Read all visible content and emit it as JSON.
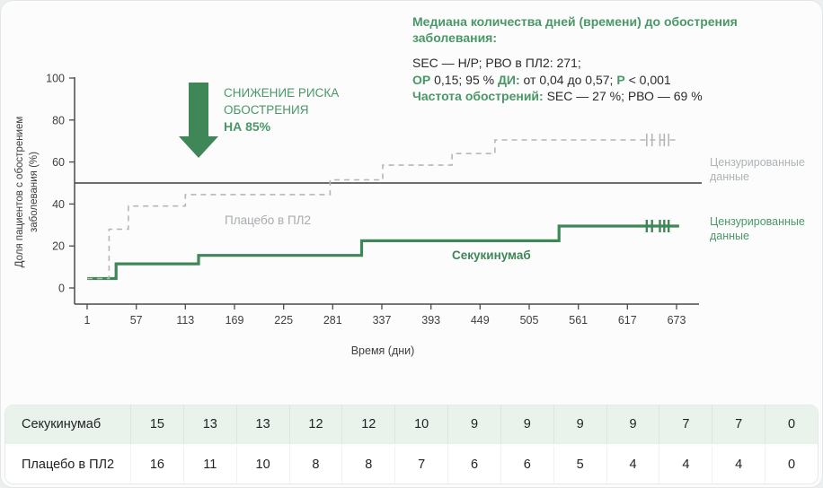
{
  "colors": {
    "green_line": "#3F8757",
    "green_text": "#4A9767",
    "gray_line": "#B6B6B6",
    "gray_text": "#A7ABAE",
    "table_green_bg": "#E9F3EC",
    "ref_line": "#1A1A1A"
  },
  "annotation": {
    "title": "Медиана количества дней (времени) до обострения заболевания:",
    "lines": [
      [
        {
          "t": "SEC — Н/Р; РВО в ПЛ2: 271;",
          "g": false
        }
      ],
      [
        {
          "t": "ОР",
          "g": true
        },
        {
          "t": " 0,15; 95 % ",
          "g": false
        },
        {
          "t": "ДИ:",
          "g": true
        },
        {
          "t": " от 0,04 до 0,57; ",
          "g": false
        },
        {
          "t": "Р",
          "g": true
        },
        {
          "t": " < 0,001",
          "g": false
        }
      ],
      [
        {
          "t": "Частота обострений:",
          "g": true
        },
        {
          "t": " SEC — 27 %; РВО — 69 %",
          "g": false
        }
      ]
    ]
  },
  "arrow": {
    "line1": "СНИЖЕНИЕ РИСКА",
    "line2": "ОБОСТРЕНИЯ",
    "line3": "НА 85%"
  },
  "chart_data": {
    "type": "line",
    "subtype": "kaplan-meier-step",
    "xlabel": "Время (дни)",
    "ylabel_line1": "Доля пациентов с обострением",
    "ylabel_line2": "заболевания (%)",
    "x_ticks": [
      1,
      57,
      113,
      169,
      225,
      281,
      337,
      393,
      449,
      505,
      561,
      617,
      673
    ],
    "y_ticks": [
      0,
      20,
      40,
      60,
      80,
      100
    ],
    "xlim": [
      1,
      673
    ],
    "ylim": [
      0,
      100
    ],
    "reference_line_y": 50,
    "series": [
      {
        "name": "Секукинумаб",
        "style": "solid",
        "color": "#3F8757",
        "steps": [
          [
            1,
            4.5
          ],
          [
            34,
            11.5
          ],
          [
            128,
            15.5
          ],
          [
            314,
            22.5
          ],
          [
            539,
            29.5
          ],
          [
            676,
            29.5
          ]
        ],
        "censored_days": [
          639,
          645,
          654,
          659,
          664
        ]
      },
      {
        "name": "Плацебо в ПЛ2",
        "style": "dashed",
        "color": "#B6B6B6",
        "steps": [
          [
            1,
            4.5
          ],
          [
            26,
            28
          ],
          [
            48,
            39
          ],
          [
            113,
            44.5
          ],
          [
            278,
            51.5
          ],
          [
            338,
            58.5
          ],
          [
            417,
            64
          ],
          [
            466,
            70.5
          ],
          [
            676,
            70.5
          ]
        ],
        "censored_days": [
          639,
          645,
          654,
          659,
          664
        ]
      }
    ],
    "series_labels": {
      "placebo": "Плацебо в ПЛ2",
      "secukinumab": "Секукинумаб"
    },
    "legend_right": [
      {
        "text": "Цензурированные данные",
        "color": "gray"
      },
      {
        "text": "Цензурированные данные",
        "color": "green"
      }
    ]
  },
  "table": {
    "rows": [
      {
        "label": "Секукинумаб",
        "values": [
          15,
          13,
          13,
          12,
          12,
          10,
          9,
          9,
          9,
          9,
          7,
          7,
          0
        ]
      },
      {
        "label": "Плацебо в ПЛ2",
        "values": [
          16,
          11,
          10,
          8,
          8,
          7,
          6,
          6,
          5,
          4,
          4,
          4,
          0
        ]
      }
    ]
  }
}
